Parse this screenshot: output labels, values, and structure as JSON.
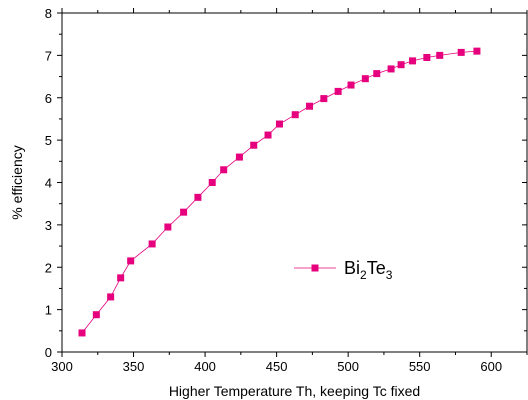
{
  "chart_data": {
    "type": "line",
    "title": "",
    "xlabel": "Higher Temperature Th, keeping Tc fixed",
    "ylabel": "% efficiency",
    "xlim": [
      300,
      625
    ],
    "ylim": [
      0,
      8
    ],
    "x_ticks": [
      300,
      350,
      400,
      450,
      500,
      550,
      600
    ],
    "y_ticks": [
      0,
      1,
      2,
      3,
      4,
      5,
      6,
      7,
      8
    ],
    "grid": false,
    "legend": "center-right",
    "legend_label": {
      "base": "Bi",
      "sub1": "2",
      "mid": "Te",
      "sub2": "3"
    },
    "series": [
      {
        "name": "Bi2Te3",
        "color": "#e6007e",
        "marker": "square",
        "x": [
          314,
          324,
          334,
          341,
          348,
          363,
          374,
          385,
          395,
          405,
          413,
          424,
          434,
          444,
          452,
          463,
          473,
          483,
          493,
          502,
          512,
          520,
          530,
          537,
          545,
          555,
          564,
          579,
          590
        ],
        "y": [
          0.45,
          0.88,
          1.3,
          1.75,
          2.15,
          2.55,
          2.95,
          3.3,
          3.65,
          4.0,
          4.3,
          4.6,
          4.88,
          5.12,
          5.38,
          5.6,
          5.8,
          5.98,
          6.15,
          6.3,
          6.45,
          6.57,
          6.68,
          6.78,
          6.87,
          6.95,
          7.0,
          7.07,
          7.1
        ]
      }
    ]
  }
}
